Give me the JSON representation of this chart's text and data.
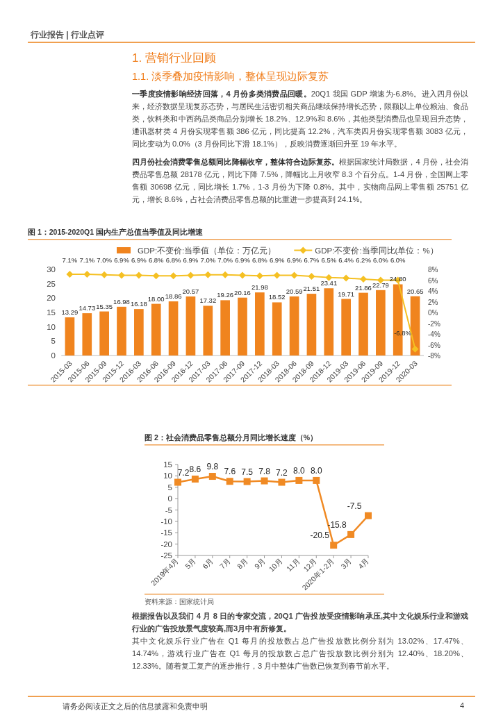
{
  "chart_data": [
    {
      "type": "other",
      "title": "1. 营销行业回顾",
      "subtitle": "1.1. 淡季叠加疫情影响，整体呈现边际复苏",
      "annotations": [
        "行业报告 | 行业点评",
        "一季度疫情影响经济回落，4 月份多类消费品回暖。",
        "20Q1 我国 GDP 增速为-6.8%。进入四月份以来，经济数据呈现复苏态势，与居民生活密切相关商品继续保持增长态势，限额以上单位粮油、食品类，饮料类和中西药品类商品分别增长 18.2%、12.9%和 8.6%，其他类型消费品也呈现回升态势，通讯器材类 4 月份实现零售额 386 亿元，同比提高 12.2%，汽车类四月份实现零售额 3083 亿元，同比变动为 0.0%（3 月份同比下滑 18.1%），反映消费逐渐回升至 19 年水平。",
        "四月份社会消费零售总额同比降幅收窄，整体符合边际复苏。",
        "根据国家统计局数据，4 月份，社会消费品零售总额 28178 亿元，同比下降 7.5%，降幅比上月收窄 8.3 个百分点。1-4 月份，全国网上零售额 30698 亿元，同比增长 1.7%，1-3 月份为下降 0.8%。其中，实物商品网上零售额 25751 亿元，增长 8.6%，占社会消费品零售总额的比重进一步提高到 24.1%。"
      ]
    },
    {
      "type": "bar",
      "title": "图 1：2015-2020Q1 国内生产总值当季值及同比增速",
      "categories": [
        "2015-03",
        "2015-06",
        "2015-09",
        "2015-12",
        "2016-03",
        "2016-06",
        "2016-09",
        "2016-12",
        "2017-03",
        "2017-06",
        "2017-09",
        "2017-12",
        "2018-03",
        "2018-06",
        "2018-09",
        "2018-12",
        "2019-03",
        "2019-06",
        "2019-09",
        "2019-12",
        "2020-03"
      ],
      "series": [
        {
          "name": "GDP:不变价:当季值（单位：万亿元）",
          "color": "#f0841e",
          "values": [
            13.29,
            14.73,
            15.35,
            16.98,
            16.18,
            18.0,
            18.86,
            20.57,
            17.32,
            19.26,
            20.16,
            21.98,
            18.52,
            20.59,
            21.51,
            23.41,
            19.71,
            21.86,
            22.79,
            24.8,
            20.65
          ],
          "value_labels": [
            "13.29",
            "14.73",
            "15.35",
            "16.98",
            "16.18",
            "18.00",
            "18.86",
            "20.57",
            "17.32",
            "19.26",
            "20.16",
            "21.98",
            "18.52",
            "20.59",
            "21.51",
            "23.41",
            "19.71",
            "21.86",
            "22.79",
            "24.80",
            "20.65"
          ]
        },
        {
          "name": "GDP:不变价:当季同比(单位：%）",
          "type": "line",
          "axis": "y2",
          "color": "#f5c023",
          "values": [
            7.1,
            7.1,
            7.0,
            6.9,
            6.9,
            6.8,
            6.8,
            6.9,
            7.0,
            7.0,
            6.9,
            6.8,
            6.9,
            6.9,
            6.7,
            6.5,
            6.4,
            6.2,
            6.0,
            6.0,
            -6.8
          ],
          "value_labels": [
            "7.1%",
            "7.1%",
            "7.0%",
            "6.9%",
            "6.9%",
            "6.8%",
            "6.8%",
            "6.9%",
            "7.0%",
            "7.0%",
            "6.9%",
            "6.8%",
            "6.9%",
            "6.9%",
            "6.7%",
            "6.5%",
            "6.4%",
            "6.2%",
            "6.0%",
            "6.0%",
            "-6.8%"
          ]
        }
      ],
      "marker": "diamond",
      "legend": "top",
      "ylim": [
        0,
        30
      ],
      "yticks": [
        0,
        5,
        10,
        15,
        20,
        25,
        30
      ],
      "y2lim": [
        -8,
        8
      ],
      "y2ticks": [
        {
          "value": -8,
          "label": "-8%"
        },
        {
          "value": -6,
          "label": "-6%"
        },
        {
          "value": -4,
          "label": "-4%"
        },
        {
          "value": -2,
          "label": "-2%"
        },
        {
          "value": 0,
          "label": "0%"
        },
        {
          "value": 2,
          "label": "2%"
        },
        {
          "value": 4,
          "label": "4%"
        },
        {
          "value": 6,
          "label": "6%"
        },
        {
          "value": 8,
          "label": "8%"
        }
      ]
    },
    {
      "type": "line",
      "title": "图 2：社会消费品零售总额分月同比增长速度（%）",
      "annotations": [
        "资料来源：国家统计局"
      ],
      "categories": [
        "2019年4月",
        "5月",
        "6月",
        "7月",
        "8月",
        "9月",
        "10月",
        "11月",
        "12月",
        "2020年1-2月",
        "3月",
        "4月"
      ],
      "series": [
        {
          "color": "#f08a24",
          "values": [
            7.2,
            8.6,
            9.8,
            7.6,
            7.5,
            7.8,
            7.2,
            8.0,
            8.0,
            -20.5,
            -15.8,
            -7.5
          ],
          "value_labels": [
            "7.2",
            "8.6",
            "9.8",
            "7.6",
            "7.5",
            "7.8",
            "7.2",
            "8.0",
            "8.0",
            "-20.5",
            "-15.8",
            "-7.5"
          ]
        }
      ],
      "marker": "square",
      "ylim": [
        -25,
        15
      ],
      "yticks": [
        -25,
        -20,
        -15,
        -10,
        -5,
        0,
        5,
        10,
        15
      ]
    },
    {
      "type": "other",
      "annotations": [
        "根据报告以及我们 4 月 8 日的专家交流，20Q1 广告投放受疫情影响承压,其中文化娱乐行业和游戏行业的广告投放景气度较高,而3月中有所修复。",
        "其中文化娱乐行业广告在 Q1 每月的投放数占总广告投放数比例分别为 13.02%、17.47%、14.74%，游戏行业广告在 Q1 每月的投放数占总广告投放数比例分别为 12.40%、18.20%、12.33%。随着复工复产的逐步推行，3 月中整体广告数已恢复到春节前水平。",
        "请务必阅读正文之后的信息披露和免责申明",
        "4"
      ]
    }
  ]
}
